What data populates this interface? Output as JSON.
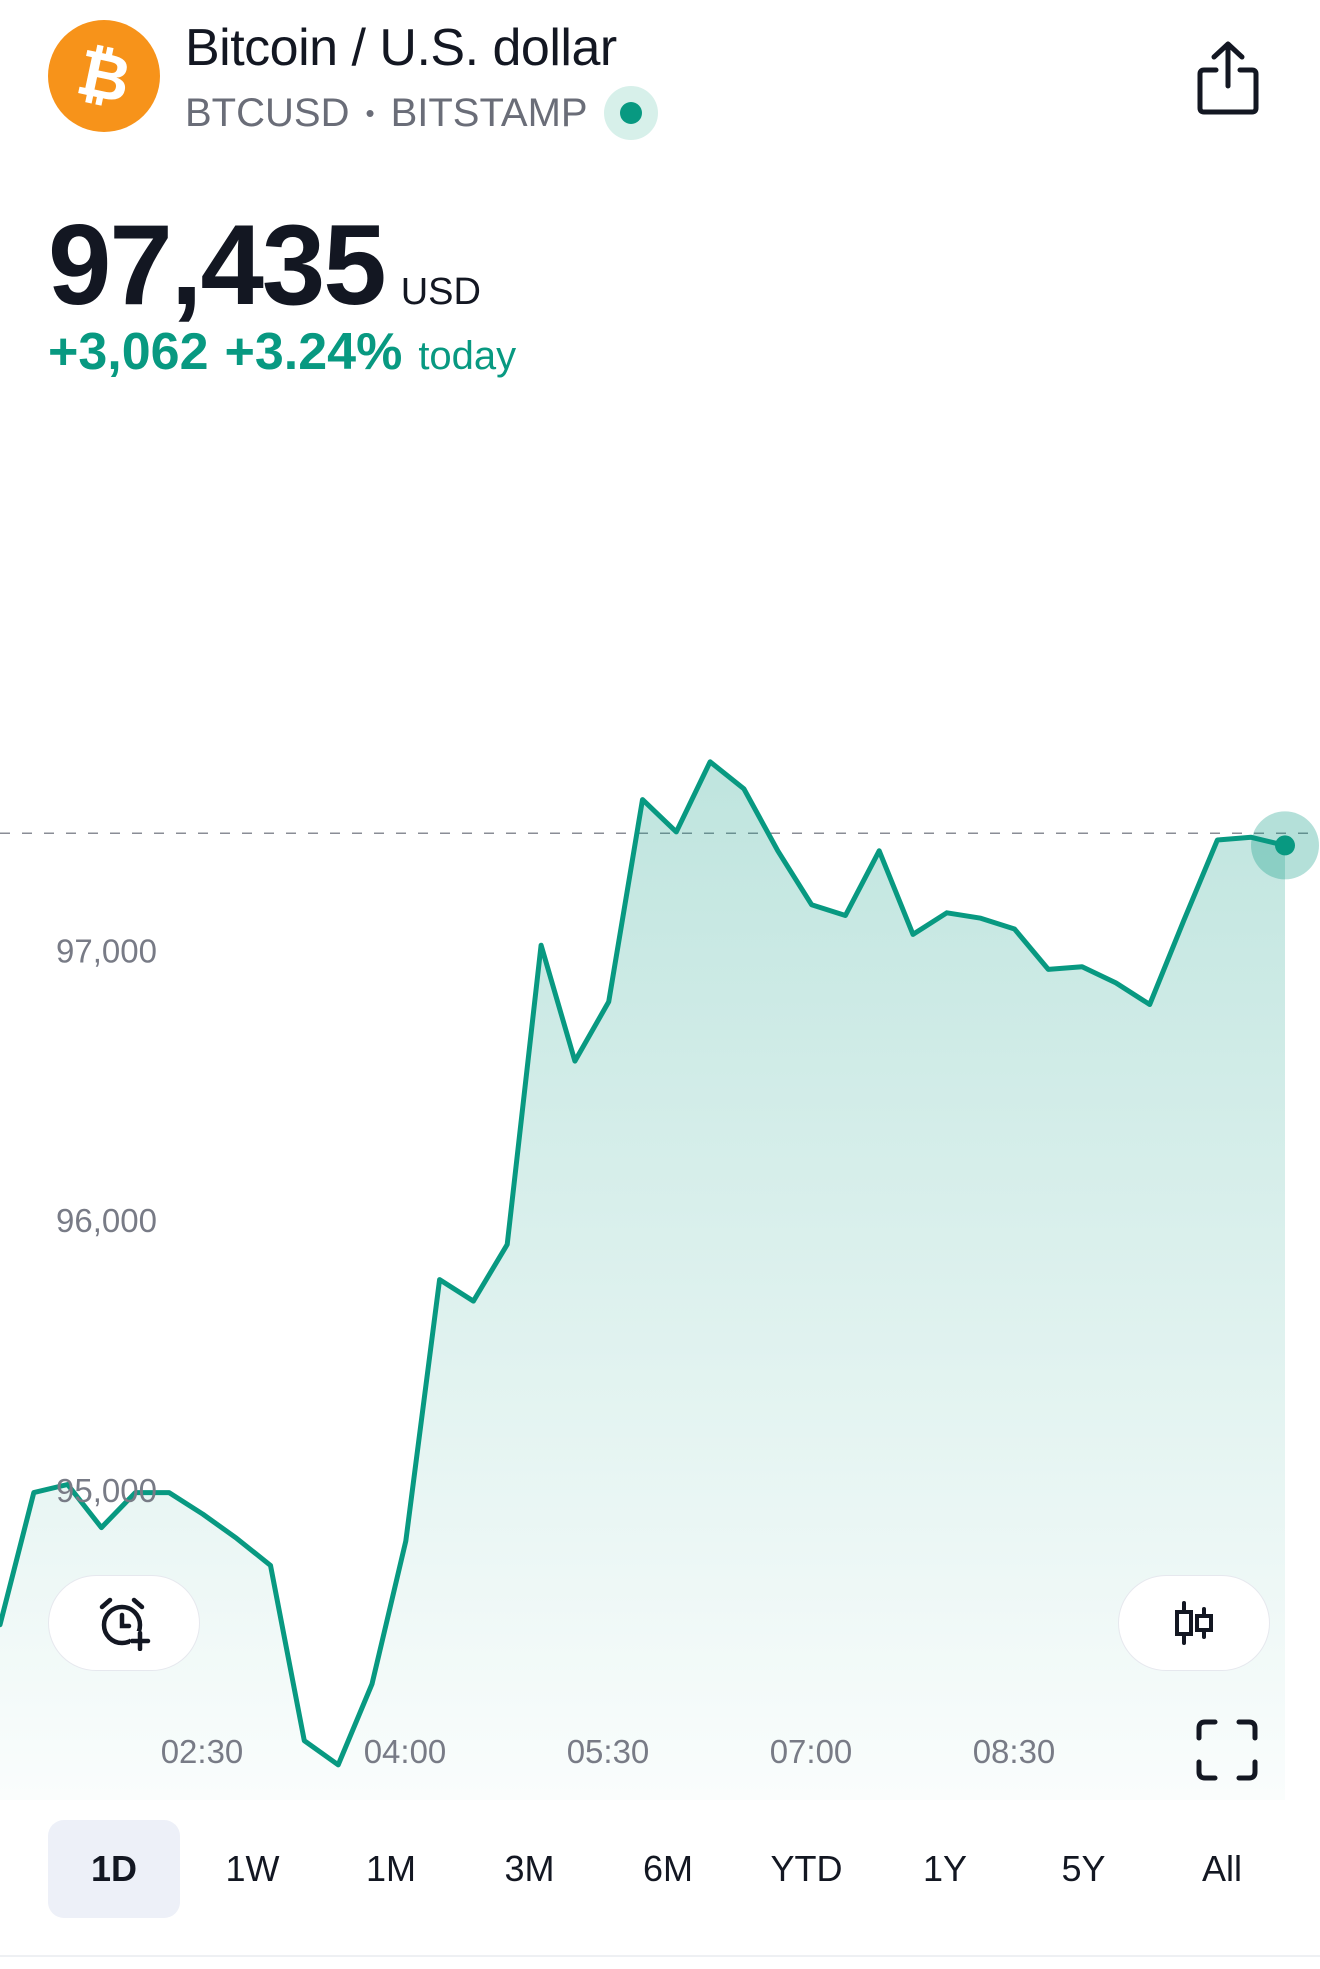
{
  "header": {
    "logo_glyph": "₿",
    "title": "Bitcoin / U.S. dollar",
    "symbol": "BTCUSD",
    "separator": "•",
    "exchange": "BITSTAMP",
    "icons": [
      "bitcoin-logo-icon",
      "live-status-icon",
      "share-icon"
    ]
  },
  "quote": {
    "price": "97,435",
    "currency": "USD",
    "change_abs": "+3,062",
    "change_pct": "+3.24%",
    "change_label": "today",
    "positive_color": "#089981"
  },
  "chart_data": {
    "type": "area",
    "y_tick_labels": [
      "97,000",
      "96,000",
      "95,000"
    ],
    "y_ticks": [
      97000,
      96000,
      95000
    ],
    "ylim": [
      93850,
      98300
    ],
    "x_tick_labels": [
      "02:30",
      "04:00",
      "05:30",
      "07:00",
      "08:30"
    ],
    "last_price": 97435,
    "series": [
      {
        "color": "#089981",
        "values": [
          94500,
          94990,
          95020,
          94860,
          94990,
          94990,
          94910,
          94820,
          94720,
          94070,
          93980,
          94280,
          94810,
          95780,
          95700,
          95910,
          97020,
          96590,
          96810,
          97560,
          97440,
          97700,
          97600,
          97370,
          97170,
          97130,
          97370,
          97060,
          97140,
          97120,
          97080,
          96930,
          96940,
          96880,
          96800,
          97110,
          97410,
          97420,
          97390
        ]
      }
    ]
  },
  "controls": {
    "alert_icon": "add-alert-clock-icon",
    "candles_icon": "candlestick-icon",
    "expand_icon": "fullscreen-icon"
  },
  "ranges": [
    {
      "label": "1D",
      "active": true
    },
    {
      "label": "1W",
      "active": false
    },
    {
      "label": "1M",
      "active": false
    },
    {
      "label": "3M",
      "active": false
    },
    {
      "label": "6M",
      "active": false
    },
    {
      "label": "YTD",
      "active": false
    },
    {
      "label": "1Y",
      "active": false
    },
    {
      "label": "5Y",
      "active": false
    },
    {
      "label": "All",
      "active": false
    }
  ]
}
